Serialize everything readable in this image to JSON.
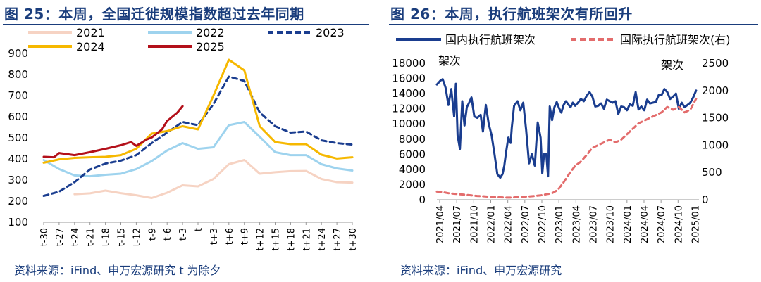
{
  "left": {
    "title": "图 25：本周，全国迁徙规模指数超过去年同期",
    "source": "资料来源：iFind、申万宏源研究  t 为除夕"
  },
  "right": {
    "title": "图 26：本周，执行航班架次有所回升",
    "source": "资料来源：iFind、申万宏源研究"
  },
  "chart_data": [
    {
      "type": "line",
      "x_ticks": [
        "t-30",
        "t-27",
        "t-24",
        "t-21",
        "t-18",
        "t-15",
        "t-12",
        "t-9",
        "t-6",
        "t-3",
        "t",
        "t+3",
        "t+6",
        "t+9",
        "t+12",
        "t+15",
        "t+18",
        "t+21",
        "t+24",
        "t+27",
        "t+30"
      ],
      "x_tick_values": [
        -30,
        -27,
        -24,
        -21,
        -18,
        -15,
        -12,
        -9,
        -6,
        -3,
        0,
        3,
        6,
        9,
        12,
        15,
        18,
        21,
        24,
        27,
        30
      ],
      "xlim": [
        -30,
        30
      ],
      "ylim": [
        100,
        900
      ],
      "y_ticks": [
        100,
        200,
        300,
        400,
        500,
        600,
        700,
        800,
        900
      ],
      "grid": false,
      "legend": "top",
      "series": [
        {
          "name": "2021",
          "color": "#f6d3c3",
          "dash": "solid",
          "x": [
            -24,
            -21,
            -18,
            -15,
            -12,
            -9,
            -6,
            -3,
            0,
            3,
            6,
            9,
            12,
            15,
            18,
            21,
            24,
            27,
            30
          ],
          "y": [
            233,
            237,
            250,
            238,
            228,
            215,
            240,
            275,
            270,
            305,
            375,
            395,
            330,
            337,
            342,
            343,
            305,
            290,
            288
          ]
        },
        {
          "name": "2022",
          "color": "#9ed3ee",
          "dash": "solid",
          "x": [
            -30,
            -27,
            -24,
            -21,
            -18,
            -15,
            -12,
            -9,
            -6,
            -3,
            0,
            3,
            6,
            9,
            12,
            15,
            18,
            21,
            24,
            27,
            30
          ],
          "y": [
            395,
            352,
            322,
            318,
            325,
            330,
            352,
            390,
            440,
            475,
            448,
            455,
            560,
            575,
            505,
            432,
            418,
            418,
            375,
            355,
            345
          ]
        },
        {
          "name": "2023",
          "color": "#1a3d8f",
          "dash": "dash",
          "x": [
            -30,
            -27,
            -24,
            -21,
            -18,
            -15,
            -12,
            -9,
            -6,
            -3,
            0,
            3,
            6,
            9,
            12,
            15,
            18,
            21,
            24,
            27,
            30
          ],
          "y": [
            225,
            245,
            290,
            350,
            378,
            392,
            418,
            475,
            525,
            575,
            560,
            660,
            790,
            770,
            620,
            555,
            525,
            530,
            488,
            475,
            468
          ]
        },
        {
          "name": "2024",
          "color": "#f6b800",
          "dash": "solid",
          "x": [
            -30,
            -27,
            -24,
            -21,
            -18,
            -15,
            -12,
            -9,
            -6,
            -3,
            0,
            3,
            6,
            9,
            12,
            15,
            18,
            21,
            24,
            27,
            30
          ],
          "y": [
            382,
            398,
            405,
            408,
            410,
            418,
            448,
            520,
            532,
            555,
            540,
            700,
            870,
            820,
            555,
            480,
            470,
            470,
            420,
            402,
            408
          ]
        },
        {
          "name": "2025",
          "color": "#b3101a",
          "dash": "solid",
          "x": [
            -30,
            -28,
            -27,
            -24,
            -21,
            -18,
            -15,
            -13,
            -12,
            -10,
            -9,
            -7,
            -6,
            -4,
            -3
          ],
          "y": [
            410,
            408,
            428,
            418,
            432,
            448,
            465,
            480,
            462,
            492,
            502,
            540,
            580,
            620,
            650
          ]
        }
      ]
    },
    {
      "type": "line",
      "x_ticks": [
        "2021/04",
        "2021/07",
        "2021/10",
        "2022/01",
        "2022/04",
        "2022/07",
        "2022/10",
        "2023/01",
        "2023/04",
        "2023/07",
        "2023/10",
        "2024/01",
        "2024/04",
        "2024/07",
        "2024/10",
        "2025/01"
      ],
      "xlim": [
        0,
        45.5
      ],
      "y_left": {
        "label": "架次",
        "ylim": [
          0,
          18000
        ],
        "ticks": [
          0,
          2000,
          4000,
          6000,
          8000,
          10000,
          12000,
          14000,
          16000,
          18000
        ]
      },
      "y_right": {
        "label": "架次",
        "ylim": [
          0,
          2500
        ],
        "ticks": [
          0,
          500,
          1000,
          1500,
          2000,
          2500
        ]
      },
      "legend": "top",
      "grid": false,
      "series": [
        {
          "name": "国内执行航班架次",
          "axis": "left",
          "color": "#1a3d8f",
          "dash": "solid",
          "x": [
            0,
            0.6,
            1,
            1.5,
            2,
            2.5,
            3,
            3.3,
            3.6,
            4,
            4.4,
            4.8,
            5.2,
            5.6,
            6,
            6.5,
            7,
            7.6,
            8,
            8.5,
            9,
            9.5,
            10,
            10.5,
            11,
            11.4,
            11.7,
            12,
            12.4,
            12.8,
            13,
            13.4,
            14,
            14.5,
            15,
            15.5,
            16,
            16.5,
            17,
            17.5,
            18,
            18.3,
            18.6,
            19,
            19.3,
            19.6,
            20,
            20.4,
            20.8,
            21.2,
            21.6,
            22,
            22.4,
            22.8,
            23.2,
            23.6,
            24,
            24.5,
            25,
            25.5,
            26,
            26.5,
            27,
            27.5,
            28,
            28.5,
            29,
            29.5,
            30,
            30.5,
            31,
            31.5,
            32,
            32.5,
            33,
            33.5,
            34,
            34.5,
            35,
            35.5,
            36,
            36.5,
            37,
            37.5,
            38,
            38.5,
            39,
            39.5,
            40,
            40.5,
            41,
            41.5,
            42,
            42.5,
            43,
            43.5,
            44,
            44.5,
            45
          ],
          "y": [
            15200,
            15700,
            15900,
            14800,
            12500,
            14600,
            11000,
            15300,
            8500,
            6700,
            13000,
            9800,
            12200,
            12800,
            13500,
            11000,
            10800,
            11200,
            9000,
            12500,
            10000,
            8500,
            6000,
            3400,
            2900,
            3400,
            4500,
            6200,
            8200,
            7500,
            9500,
            12400,
            13000,
            11800,
            12800,
            9200,
            4800,
            6000,
            4500,
            10200,
            8200,
            3500,
            6000,
            6000,
            3100,
            12300,
            10500,
            12200,
            12900,
            12100,
            11500,
            12500,
            13000,
            12600,
            12200,
            12800,
            12400,
            12800,
            13300,
            13000,
            13700,
            14200,
            13600,
            12300,
            12400,
            12700,
            12000,
            13200,
            13000,
            12800,
            13000,
            11300,
            12300,
            12200,
            11800,
            12600,
            12400,
            14200,
            11900,
            12300,
            11800,
            13200,
            12700,
            12800,
            12900,
            13800,
            13800,
            14600,
            14200,
            13300,
            13600,
            14000,
            12000,
            12800,
            12200,
            12500,
            12800,
            13500,
            14400
          ]
        },
        {
          "name": "国际执行航班架次(右)",
          "axis": "right",
          "color": "#e36c6c",
          "dash": "dash",
          "x": [
            0,
            1,
            2,
            3,
            4,
            5,
            6,
            7,
            8,
            9,
            10,
            11,
            12,
            13,
            14,
            15,
            16,
            17,
            18,
            19,
            20,
            21,
            22,
            23,
            24,
            25,
            26,
            27,
            28,
            29,
            30,
            31,
            32,
            33,
            34,
            35,
            36,
            37,
            38,
            39,
            40,
            41,
            42,
            43,
            44,
            45
          ],
          "y": [
            150,
            140,
            120,
            110,
            100,
            90,
            80,
            70,
            65,
            55,
            50,
            45,
            40,
            40,
            50,
            55,
            60,
            70,
            80,
            100,
            120,
            180,
            320,
            480,
            620,
            700,
            820,
            950,
            1000,
            1050,
            1100,
            1050,
            1100,
            1200,
            1300,
            1400,
            1450,
            1500,
            1550,
            1600,
            1700,
            1650,
            1700,
            1600,
            1650,
            1850
          ]
        }
      ]
    }
  ]
}
